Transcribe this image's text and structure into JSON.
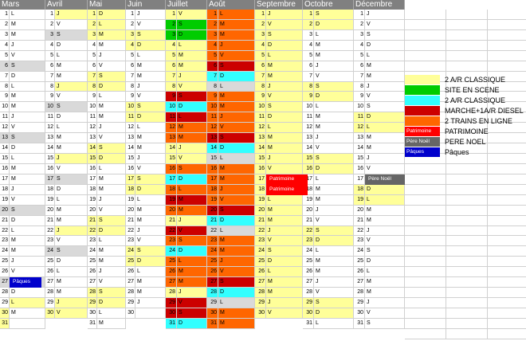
{
  "months": [
    "Mars",
    "Avril",
    "Mai",
    "Juin",
    "Juillet",
    "Août",
    "Septembre",
    "Octobre",
    "Décembre"
  ],
  "days": {
    "Mars": "LMMJVSDLMMJVSDLMMJVSDLMMJVSDLM",
    "Avril": "JVSDLMMJVSDLMMJVSDLMMJVSDLMMJVS",
    "Mai": "DLMMJVSDLMMJVSDLMMJVSDLMMJVSDLMM",
    "Juin": "JVSDLMMJVSDLMMJVSDLMMJVSDLMMJ",
    "Juillet": "VSDLMMJVSDLMMJVSDLMMJVSDLMMJVSD",
    "Août": "LMMJVSDLMMJVSDLMMJVSDLMMJVSDLMM",
    "Septembre": "JVSDLMMJVSDLMMJVSDLMMJVSDLMMJV",
    "Octobre": "SDLMMJVSDLMMJVSDLMMJVSDLMMJVSDL",
    "Décembre": "JVSDLMMJVSDLMMJVSDLMMJVSDLMMJVS"
  },
  "colors": {
    "classique_yellow": "#ffff99",
    "site_en_scene": "#00cc00",
    "classique_cyan": "#33ffff",
    "diesel": "#cc0000",
    "deux_trains": "#ff6600",
    "patrimoine": "#ff0000",
    "pere_noel": "#666666",
    "paques": "#0000cc",
    "weekend_grey": "#d9d9d9"
  },
  "legend": [
    {
      "key": "classique_yellow",
      "label": "2 A/R CLASSIQUE",
      "swatch_text": ""
    },
    {
      "key": "site_en_scene",
      "label": "SITE EN SCENE",
      "swatch_text": ""
    },
    {
      "key": "classique_cyan",
      "label": "2 A/R CLASSIQUE",
      "swatch_text": ""
    },
    {
      "key": "diesel",
      "label": "MARCHE+1A/R DIESEL",
      "swatch_text": ""
    },
    {
      "key": "deux_trains",
      "label": "2 TRAINS EN LIGNE",
      "swatch_text": ""
    },
    {
      "key": "patrimoine",
      "label": "PATRIMOINE",
      "swatch_text": "Patrimoine"
    },
    {
      "key": "pere_noel",
      "label": "PERE NOEL",
      "swatch_text": "Père Noël"
    },
    {
      "key": "paques",
      "label": "Pâques",
      "swatch_text": "Pâques"
    }
  ],
  "events": {
    "paques": "Pâques",
    "patrimoine": "Patrimoine",
    "pere_noel": "Père Noël"
  }
}
